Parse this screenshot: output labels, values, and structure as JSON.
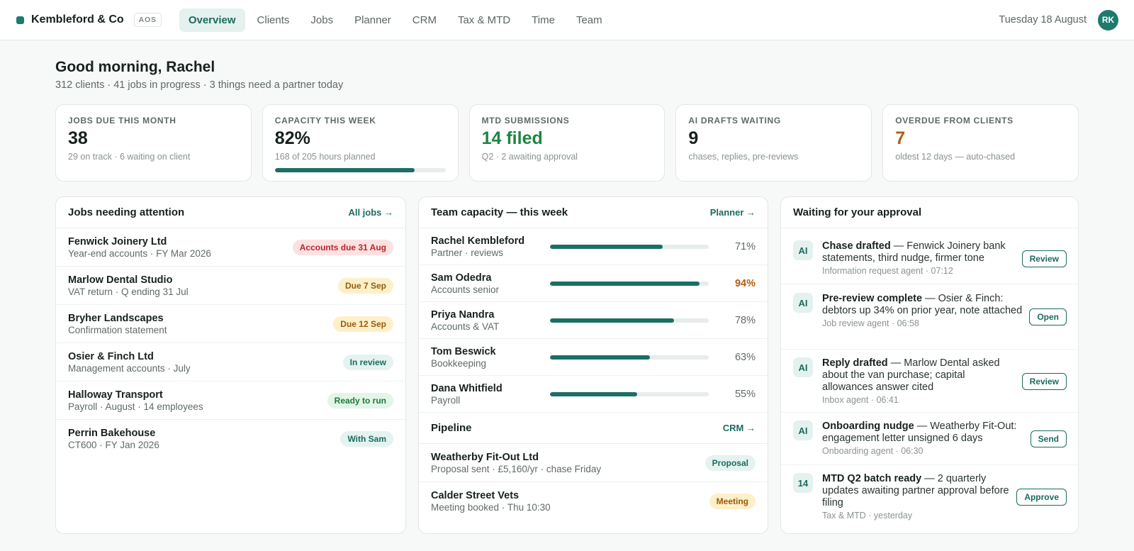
{
  "brand": {
    "name": "Kembleford & Co",
    "tag": "AOS"
  },
  "nav": [
    {
      "label": "Overview",
      "active": true
    },
    {
      "label": "Clients"
    },
    {
      "label": "Jobs"
    },
    {
      "label": "Planner"
    },
    {
      "label": "CRM"
    },
    {
      "label": "Tax & MTD"
    },
    {
      "label": "Time"
    },
    {
      "label": "Team"
    }
  ],
  "header": {
    "date": "Tuesday 18 August",
    "avatar_initials": "RK"
  },
  "greeting": {
    "title": "Good morning, Rachel",
    "subtitle": "312 clients · 41 jobs in progress · 3 things need a partner today"
  },
  "stats": [
    {
      "label": "Jobs due this month",
      "value": "38",
      "sub": "29 on track · 6 waiting on client",
      "tone": "default"
    },
    {
      "label": "Capacity this week",
      "value": "82%",
      "sub": "168 of 205 hours planned",
      "tone": "default",
      "progress": 0.82
    },
    {
      "label": "MTD submissions",
      "value": "14 filed",
      "sub": "Q2 · 2 awaiting approval",
      "tone": "green"
    },
    {
      "label": "AI drafts waiting",
      "value": "9",
      "sub": "chases, replies, pre-reviews",
      "tone": "default"
    },
    {
      "label": "Overdue from clients",
      "value": "7",
      "sub": "oldest 12 days — auto-chased",
      "tone": "amber"
    }
  ],
  "jobs": {
    "title": "Jobs needing attention",
    "link": "All jobs →",
    "rows": [
      {
        "name": "Fenwick Joinery Ltd",
        "sub": "Year-end accounts · FY Mar 2026",
        "pill": "Accounts due 31 Aug",
        "tone": "red"
      },
      {
        "name": "Marlow Dental Studio",
        "sub": "VAT return · Q ending 31 Jul",
        "pill": "Due 7 Sep",
        "tone": "amber"
      },
      {
        "name": "Bryher Landscapes",
        "sub": "Confirmation statement",
        "pill": "Due 12 Sep",
        "tone": "amber"
      },
      {
        "name": "Osier & Finch Ltd",
        "sub": "Management accounts · July",
        "pill": "In review",
        "tone": "teal"
      },
      {
        "name": "Halloway Transport",
        "sub": "Payroll · August · 14 employees",
        "pill": "Ready to run",
        "tone": "green"
      },
      {
        "name": "Perrin Bakehouse",
        "sub": "CT600 · FY Jan 2026",
        "pill": "With Sam",
        "tone": "teal"
      }
    ]
  },
  "capacity": {
    "title": "Team capacity — this week",
    "link": "Planner →",
    "rows": [
      {
        "name": "Rachel Kembleford",
        "role": "Partner · reviews",
        "pct": 71,
        "label": "71%",
        "warn": false
      },
      {
        "name": "Sam Odedra",
        "role": "Accounts senior",
        "pct": 94,
        "label": "94%",
        "warn": true
      },
      {
        "name": "Priya Nandra",
        "role": "Accounts & VAT",
        "pct": 78,
        "label": "78%",
        "warn": false
      },
      {
        "name": "Tom Beswick",
        "role": "Bookkeeping",
        "pct": 63,
        "label": "63%",
        "warn": false
      },
      {
        "name": "Dana Whitfield",
        "role": "Payroll",
        "pct": 55,
        "label": "55%",
        "warn": false
      }
    ]
  },
  "pipeline": {
    "title": "Pipeline",
    "link": "CRM →",
    "rows": [
      {
        "name": "Weatherby Fit-Out Ltd",
        "sub": "Proposal sent · £5,160/yr · chase Friday",
        "pill": "Proposal",
        "tone": "teal"
      },
      {
        "name": "Calder Street Vets",
        "sub": "Meeting booked · Thu 10:30",
        "pill": "Meeting",
        "tone": "amber"
      }
    ]
  },
  "approvals": {
    "title": "Waiting for your approval",
    "rows": [
      {
        "badge": "AI",
        "strong": "Chase drafted",
        "text": " — Fenwick Joinery bank statements, third nudge, firmer tone",
        "meta": "Information request agent · 07:12",
        "action": "Review"
      },
      {
        "badge": "AI",
        "strong": "Pre-review complete",
        "text": " — Osier & Finch: debtors up 34% on prior year, note attached",
        "meta": "Job review agent · 06:58",
        "action": "Open"
      },
      {
        "badge": "AI",
        "strong": "Reply drafted",
        "text": " — Marlow Dental asked about the van purchase; capital allowances answer cited",
        "meta": "Inbox agent · 06:41",
        "action": "Review"
      },
      {
        "badge": "AI",
        "strong": "Onboarding nudge",
        "text": " — Weatherby Fit-Out: engagement letter unsigned 6 days",
        "meta": "Onboarding agent · 06:30",
        "action": "Send"
      },
      {
        "badge": "14",
        "strong": "MTD Q2 batch ready",
        "text": " — 2 quarterly updates awaiting partner approval before filing",
        "meta": "Tax & MTD · yesterday",
        "action": "Approve"
      }
    ]
  }
}
